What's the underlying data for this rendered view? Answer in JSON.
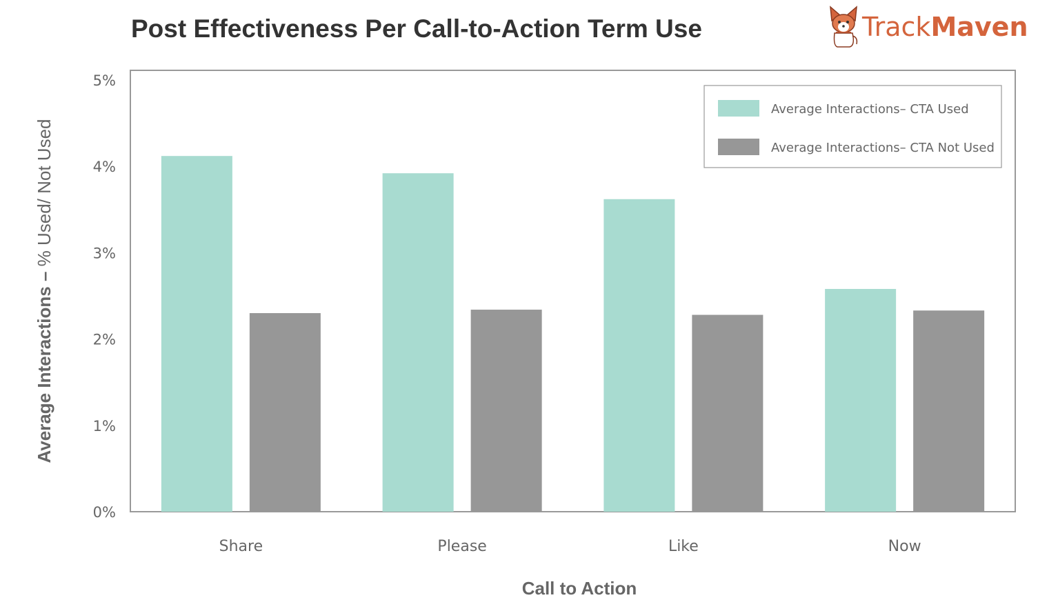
{
  "colors": {
    "used": "#a8dbd0",
    "not_used": "#979797",
    "frame": "#999999",
    "title": "#333333",
    "text": "#666666",
    "brand": "#d4643c"
  },
  "brand": {
    "part1": "Track",
    "part2": "Maven",
    "logo_icon": "corgi-mascot-icon"
  },
  "chart_data": {
    "type": "bar",
    "title": "Post Effectiveness Per Call-to-Action Term Use",
    "xlabel": "Call to Action",
    "ylabel_bold": "Average Interactions – ",
    "ylabel_light": "% Used/ Not Used",
    "categories": [
      "Share",
      "Please",
      "Like",
      "Now"
    ],
    "series": [
      {
        "name": "Average Interactions– CTA Used",
        "values": [
          4.12,
          3.92,
          3.62,
          2.58
        ]
      },
      {
        "name": "Average Interactions– CTA Not Used",
        "values": [
          2.3,
          2.34,
          2.28,
          2.33
        ]
      }
    ],
    "ylim": [
      0,
      5
    ],
    "yticks": [
      "0%",
      "1%",
      "2%",
      "3%",
      "4%",
      "5%"
    ],
    "legend_position": "top-right",
    "grid": false
  }
}
